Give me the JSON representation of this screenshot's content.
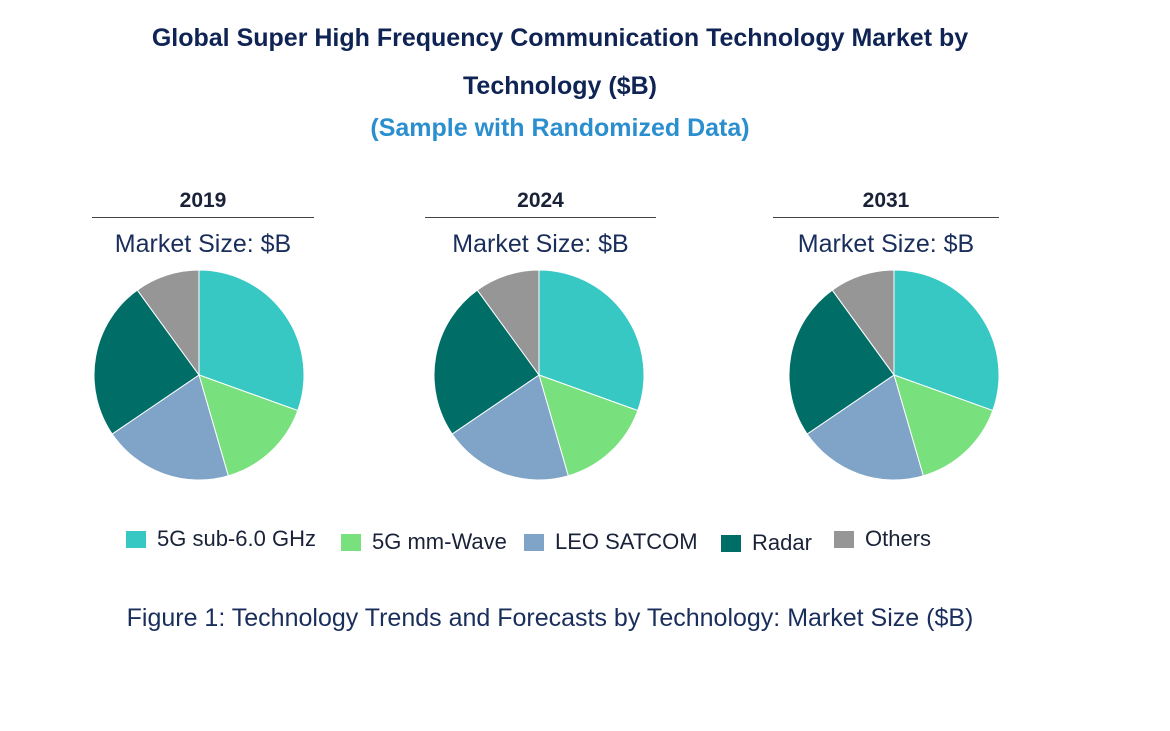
{
  "header": {
    "title_line1": "Global Super High Frequency Communication Technology Market by",
    "title_line2": "Technology ($B)",
    "subtitle": "(Sample with Randomized Data)"
  },
  "market_size_label": "Market Size: $B",
  "caption": "Figure 1: Technology Trends and Forecasts by Technology: Market Size ($B)",
  "colors": {
    "5G sub-6.0 GHz": "#38c8c4",
    "5G mm-Wave": "#78e07c",
    "LEO SATCOM": "#7fa4c8",
    "Radar": "#006e66",
    "Others": "#969696"
  },
  "legend": [
    "5G sub-6.0 GHz",
    "5G mm-Wave",
    "LEO SATCOM",
    "Radar",
    "Others"
  ],
  "chart_data": [
    {
      "type": "pie",
      "title": "2019",
      "categories": [
        "5G sub-6.0 GHz",
        "5G mm-Wave",
        "LEO SATCOM",
        "Radar",
        "Others"
      ],
      "values": [
        30.5,
        15,
        20,
        24.5,
        10
      ]
    },
    {
      "type": "pie",
      "title": "2024",
      "categories": [
        "5G sub-6.0 GHz",
        "5G mm-Wave",
        "LEO SATCOM",
        "Radar",
        "Others"
      ],
      "values": [
        30.5,
        15,
        20,
        24.5,
        10
      ]
    },
    {
      "type": "pie",
      "title": "2031",
      "categories": [
        "5G sub-6.0 GHz",
        "5G mm-Wave",
        "LEO SATCOM",
        "Radar",
        "Others"
      ],
      "values": [
        30.5,
        15,
        20,
        24.5,
        10
      ]
    }
  ]
}
